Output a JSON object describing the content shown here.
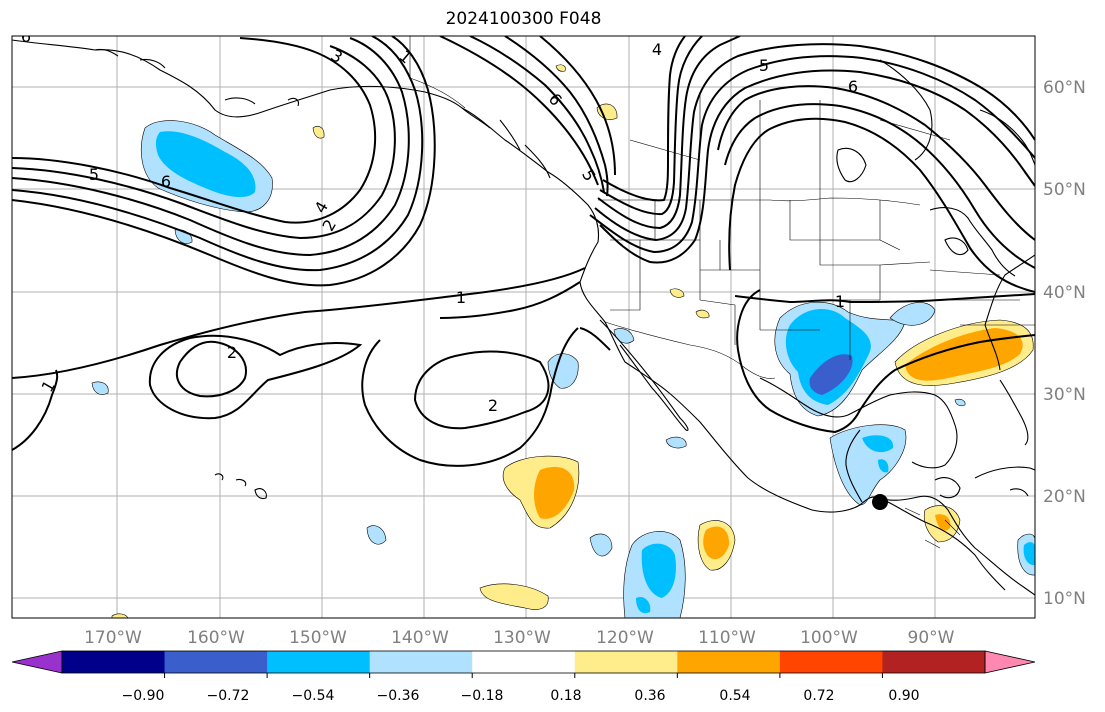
{
  "title": "2024100300 F048",
  "latitude_labels": [
    "60°N",
    "50°N",
    "40°N",
    "30°N",
    "20°N",
    "10°N"
  ],
  "longitude_labels": [
    "170°W",
    "160°W",
    "150°W",
    "140°W",
    "130°W",
    "120°W",
    "110°W",
    "100°W",
    "90°W"
  ],
  "contours": {
    "color": "#000000",
    "labels": [
      "6",
      "3",
      "1",
      "4",
      "5",
      "6",
      "6",
      "5",
      "6",
      "4",
      "2",
      "5",
      "1",
      "2",
      "2",
      "1",
      "1"
    ]
  },
  "colorbar": {
    "colors": [
      "#9932cc",
      "#00008b",
      "#3a5fcd",
      "#00bfff",
      "#b0e2ff",
      "#ffffff",
      "#ffec8b",
      "#ffa500",
      "#ff4500",
      "#b22222",
      "#ff88b0"
    ],
    "tick_labels": [
      "−0.90",
      "−0.72",
      "−0.54",
      "−0.36",
      "−0.18",
      "0.18",
      "0.36",
      "0.54",
      "0.72",
      "0.90"
    ],
    "extend": "both"
  }
}
